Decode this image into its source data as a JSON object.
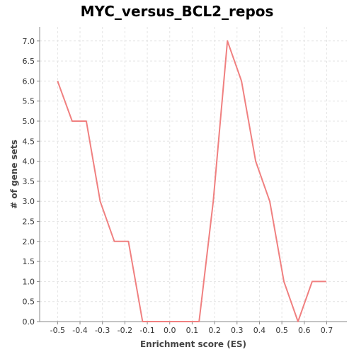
{
  "chart_data": {
    "type": "line",
    "title": "MYC_versus_BCL2_repos",
    "xlabel": "Enrichment score (ES)",
    "ylabel": "# of gene sets",
    "xlim": [
      -0.58,
      0.79
    ],
    "ylim": [
      0,
      7.35
    ],
    "x_ticks": [
      "-0.5",
      "-0.4",
      "-0.3",
      "-0.2",
      "-0.1",
      "0.0",
      "0.1",
      "0.2",
      "0.3",
      "0.4",
      "0.5",
      "0.6",
      "0.7"
    ],
    "y_ticks": [
      "0.0",
      "0.5",
      "1.0",
      "1.5",
      "2.0",
      "2.5",
      "3.0",
      "3.5",
      "4.0",
      "4.5",
      "5.0",
      "5.5",
      "6.0",
      "6.5",
      "7.0"
    ],
    "grid": true,
    "series": [
      {
        "color": "#f08080",
        "points": [
          [
            -0.5,
            6
          ],
          [
            -0.435,
            5
          ],
          [
            -0.372,
            5
          ],
          [
            -0.31,
            3
          ],
          [
            -0.247,
            2
          ],
          [
            -0.184,
            2
          ],
          [
            -0.121,
            0
          ],
          [
            -0.058,
            0
          ],
          [
            0.005,
            0
          ],
          [
            0.068,
            0
          ],
          [
            0.131,
            0
          ],
          [
            0.194,
            3
          ],
          [
            0.257,
            7
          ],
          [
            0.32,
            6
          ],
          [
            0.383,
            4
          ],
          [
            0.446,
            3
          ],
          [
            0.509,
            1
          ],
          [
            0.572,
            0
          ],
          [
            0.635,
            1
          ],
          [
            0.698,
            1
          ]
        ]
      }
    ]
  }
}
